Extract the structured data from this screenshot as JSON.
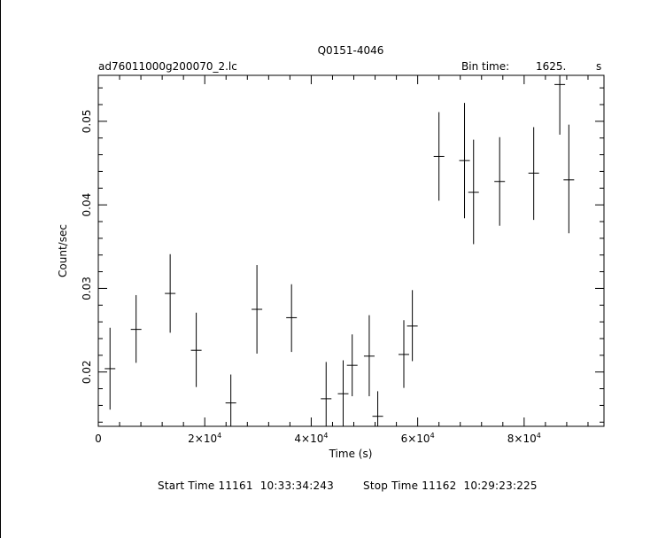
{
  "chart_data": {
    "type": "scatter",
    "title": "Q0151-4046",
    "file_label": "ad76011000g200070_2.lc",
    "bin_time_label": "Bin time:",
    "bin_time_value": "1625.",
    "bin_time_unit": "s",
    "xlabel": "Time (s)",
    "ylabel": "Count/sec",
    "xlim": [
      0,
      95000
    ],
    "ylim": [
      0.0135,
      0.0555
    ],
    "x_ticks": [
      {
        "value": 0,
        "mantissa": "0",
        "exponent": ""
      },
      {
        "value": 20000,
        "mantissa": "2×10",
        "exponent": "4"
      },
      {
        "value": 40000,
        "mantissa": "4×10",
        "exponent": "4"
      },
      {
        "value": 60000,
        "mantissa": "6×10",
        "exponent": "4"
      },
      {
        "value": 80000,
        "mantissa": "8×10",
        "exponent": "4"
      }
    ],
    "y_ticks": [
      {
        "value": 0.02,
        "label": "0.02"
      },
      {
        "value": 0.03,
        "label": "0.03"
      },
      {
        "value": 0.04,
        "label": "0.04"
      },
      {
        "value": 0.05,
        "label": "0.05"
      }
    ],
    "points": [
      {
        "x": 2200,
        "y": 0.0204,
        "y_lo": 0.0155,
        "y_hi": 0.0253
      },
      {
        "x": 7100,
        "y": 0.0251,
        "y_lo": 0.0211,
        "y_hi": 0.0292
      },
      {
        "x": 13500,
        "y": 0.0294,
        "y_lo": 0.0247,
        "y_hi": 0.0341
      },
      {
        "x": 18400,
        "y": 0.0226,
        "y_lo": 0.0182,
        "y_hi": 0.0271
      },
      {
        "x": 24900,
        "y": 0.0163,
        "y_lo": 0.0129,
        "y_hi": 0.0197
      },
      {
        "x": 29800,
        "y": 0.0275,
        "y_lo": 0.0222,
        "y_hi": 0.0328
      },
      {
        "x": 36300,
        "y": 0.0265,
        "y_lo": 0.0224,
        "y_hi": 0.0305
      },
      {
        "x": 42800,
        "y": 0.0168,
        "y_lo": 0.0123,
        "y_hi": 0.0212
      },
      {
        "x": 46000,
        "y": 0.0174,
        "y_lo": 0.0133,
        "y_hi": 0.0214
      },
      {
        "x": 47700,
        "y": 0.0208,
        "y_lo": 0.0171,
        "y_hi": 0.0245
      },
      {
        "x": 50900,
        "y": 0.0219,
        "y_lo": 0.0171,
        "y_hi": 0.0268
      },
      {
        "x": 52500,
        "y": 0.0147,
        "y_lo": 0.0112,
        "y_hi": 0.0177
      },
      {
        "x": 57400,
        "y": 0.0221,
        "y_lo": 0.0181,
        "y_hi": 0.0262
      },
      {
        "x": 59000,
        "y": 0.0255,
        "y_lo": 0.0213,
        "y_hi": 0.0298
      },
      {
        "x": 64000,
        "y": 0.0458,
        "y_lo": 0.0405,
        "y_hi": 0.0511
      },
      {
        "x": 68800,
        "y": 0.0453,
        "y_lo": 0.0384,
        "y_hi": 0.0522
      },
      {
        "x": 70500,
        "y": 0.0415,
        "y_lo": 0.0353,
        "y_hi": 0.0478
      },
      {
        "x": 75400,
        "y": 0.0428,
        "y_lo": 0.0375,
        "y_hi": 0.0481
      },
      {
        "x": 81800,
        "y": 0.0438,
        "y_lo": 0.0382,
        "y_hi": 0.0493
      },
      {
        "x": 86700,
        "y": 0.0544,
        "y_lo": 0.0484,
        "y_hi": 0.056
      },
      {
        "x": 88400,
        "y": 0.043,
        "y_lo": 0.0366,
        "y_hi": 0.0496
      }
    ],
    "grid": false,
    "legend": "none"
  },
  "footer": {
    "start": "Start Time 11161  10:33:34:243",
    "stop": "Stop Time 11162  10:29:23:225"
  }
}
